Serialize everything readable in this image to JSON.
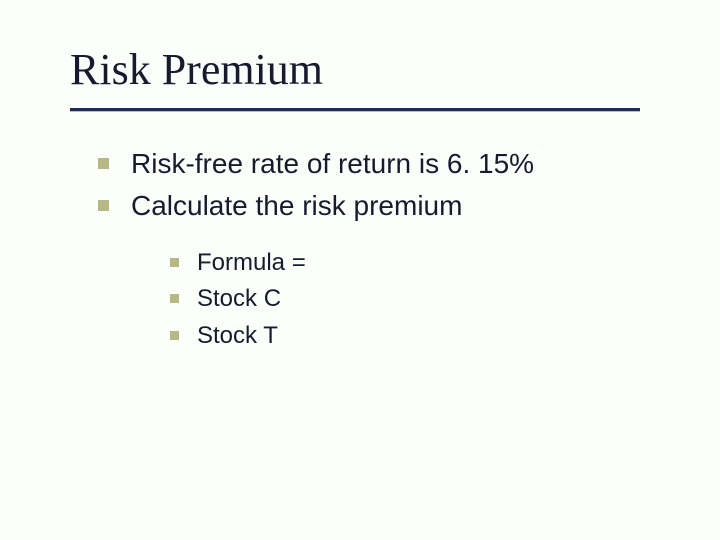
{
  "slide": {
    "title": "Risk Premium",
    "title_fontsize": 44,
    "title_font": "Times New Roman",
    "underline_color": "#1f2a5a",
    "underline_width": 570,
    "bullet_color": "#b6b886",
    "background_color": "#fcfef9",
    "text_color": "#1a1a2e",
    "body_font": "Verdana",
    "body_fontsize_l1": 28,
    "body_fontsize_l2": 24,
    "items_l1": [
      "Risk-free rate of return is 6. 15%",
      "Calculate the risk premium"
    ],
    "items_l2": [
      "Formula =",
      "Stock C",
      "Stock T"
    ]
  }
}
